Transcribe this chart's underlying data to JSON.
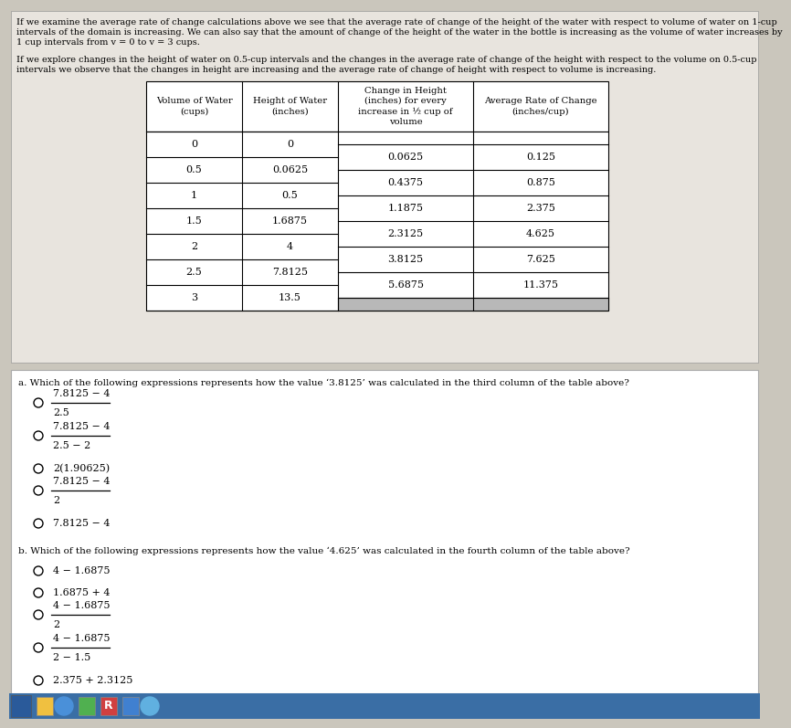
{
  "bg_color": "#cac6bc",
  "top_panel_color": "#e8e4de",
  "bottom_panel_color": "#ffffff",
  "table_header_bg": "#ffffff",
  "table_body_bg": "#ffffff",
  "table_shade_bg": "#b8b8b8",
  "para1_line1": "If we examine the average rate of change calculations above we see that the average rate of change of the height of the water with respect to volume of water on 1-cup",
  "para1_line2": "intervals of the domain is increasing. We can also say that the amount of change of the height of the water in the bottle is increasing as the volume of water increases by",
  "para1_line3": "1 cup intervals from v = 0 to v = 3 cups.",
  "para2_line1": "If we explore changes in the height of water on 0.5-cup intervals and the changes in the average rate of change of the height with respect to the volume on 0.5-cup",
  "para2_line2": "intervals we observe that the changes in height are increasing and the average rate of change of height with respect to volume is increasing.",
  "col1_header": "Volume of Water\n(cups)",
  "col2_header": "Height of Water\n(inches)",
  "col3_header": "Change in Height\n(inches) for every\nincrease in ½ cup of\nvolume",
  "col4_header": "Average Rate of Change\n(inches/cup)",
  "col1": [
    "0",
    "0.5",
    "1",
    "1.5",
    "2",
    "2.5",
    "3"
  ],
  "col2": [
    "0",
    "0.0625",
    "0.5",
    "1.6875",
    "4",
    "7.8125",
    "13.5"
  ],
  "col3": [
    "0.0625",
    "0.4375",
    "1.1875",
    "2.3125",
    "3.8125",
    "5.6875"
  ],
  "col4": [
    "0.125",
    "0.875",
    "2.375",
    "4.625",
    "7.625",
    "11.375"
  ],
  "qa_label": "a. Which of the following expressions represents how the value ‘3.8125’ was calculated in the third column of the table above?",
  "qa_opts": [
    {
      "num": "7.8125 − 4",
      "den": "2.5",
      "frac": true
    },
    {
      "num": "7.8125 − 4",
      "den": "2.5 − 2",
      "frac": true
    },
    {
      "num": "2(1.90625)",
      "frac": false
    },
    {
      "num": "7.8125 − 4",
      "den": "2",
      "frac": true
    },
    {
      "num": "7.8125 − 4",
      "frac": false
    }
  ],
  "qb_label": "b. Which of the following expressions represents how the value ‘4.625’ was calculated in the fourth column of the table above?",
  "qb_opts": [
    {
      "num": "4 − 1.6875",
      "frac": false
    },
    {
      "num": "1.6875 + 4",
      "frac": false
    },
    {
      "num": "4 − 1.6875",
      "den": "2",
      "frac": true
    },
    {
      "num": "4 − 1.6875",
      "den": "2 − 1.5",
      "frac": true
    },
    {
      "num": "2.375 + 2.3125",
      "frac": false
    }
  ]
}
